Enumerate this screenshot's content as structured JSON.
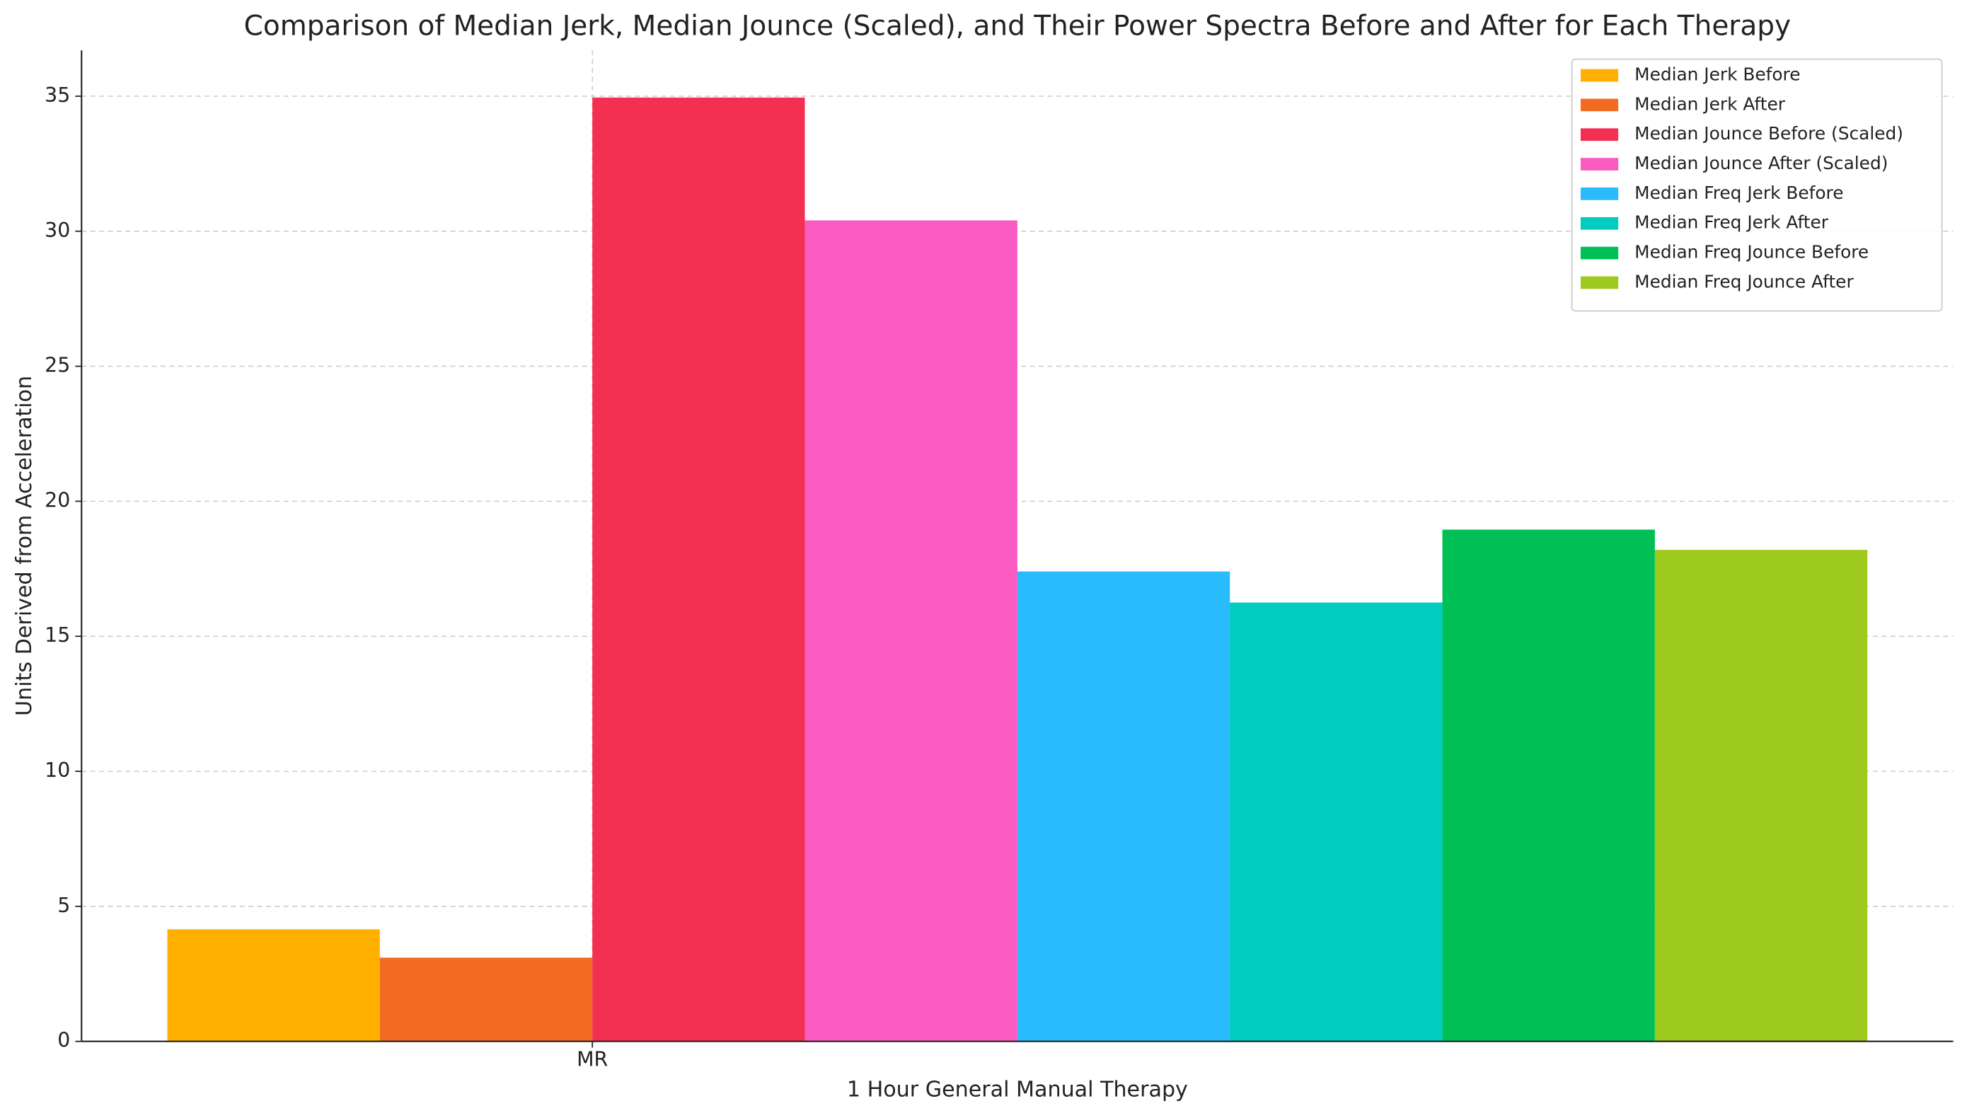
{
  "chart_data": {
    "type": "bar",
    "title": "Comparison of Median Jerk, Median Jounce (Scaled), and Their Power Spectra Before and After for Each Therapy",
    "x_label": "1 Hour General Manual Therapy",
    "y_label": "Units Derived from Acceleration",
    "categories": [
      "MR"
    ],
    "series": [
      {
        "name": "Median Jerk Before",
        "color": "#ffb000",
        "values": [
          4.15
        ]
      },
      {
        "name": "Median Jerk After",
        "color": "#f26b23",
        "values": [
          3.1
        ]
      },
      {
        "name": "Median Jounce Before (Scaled)",
        "color": "#f43052",
        "values": [
          34.95
        ]
      },
      {
        "name": "Median Jounce After (Scaled)",
        "color": "#f95bc1",
        "values": [
          30.4
        ]
      },
      {
        "name": "Median Freq Jerk Before",
        "color": "#29bbfc",
        "values": [
          17.4
        ]
      },
      {
        "name": "Median Freq Jerk After",
        "color": "#00ccc0",
        "values": [
          16.25
        ]
      },
      {
        "name": "Median Freq Jounce Before",
        "color": "#00c055",
        "values": [
          18.95
        ]
      },
      {
        "name": "Median Freq Jounce After",
        "color": "#9ec91e",
        "values": [
          18.2
        ]
      }
    ],
    "ylim": [
      0,
      36.7
    ],
    "yticks": [
      0,
      5,
      10,
      15,
      20,
      25,
      30,
      35
    ],
    "grid": true,
    "legend": "upper right"
  }
}
